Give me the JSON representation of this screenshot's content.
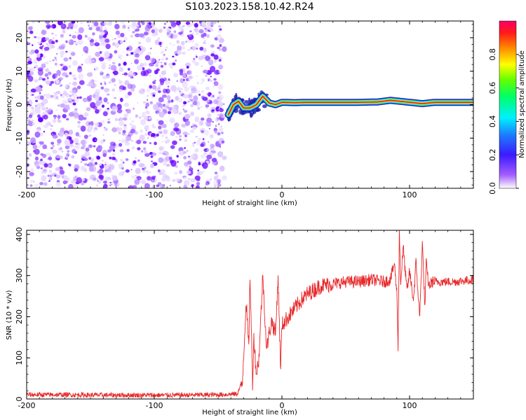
{
  "title": "S103.2023.158.10.42.R24",
  "colors": {
    "snr_line": "#e8282a",
    "speckle": "#7a1fff",
    "band_core": "#ff1a30",
    "band_glow": "#22d8ff",
    "band_outline": "#1f1fb0"
  },
  "chart_data": [
    {
      "type": "heatmap",
      "title": "S103.2023.158.10.42.R24",
      "xlabel": "Height of straight line (km)",
      "ylabel": "Frequency (Hz)",
      "xlim": [
        -200,
        150
      ],
      "ylim": [
        -25,
        25
      ],
      "x_ticks": [
        -200,
        -100,
        0,
        100
      ],
      "y_ticks": [
        -20,
        -10,
        0,
        10,
        20
      ],
      "x_tick_labels": [
        "-200",
        "-100",
        "0",
        "100"
      ],
      "y_tick_labels": [
        "-20",
        "-10",
        "0",
        "10",
        "20"
      ],
      "noise_region_x": [
        -200,
        -45
      ],
      "signal_x_range": [
        -42,
        150
      ],
      "signal_frequency_trace": [
        {
          "x": -42,
          "y": -3
        },
        {
          "x": -38,
          "y": 0
        },
        {
          "x": -34,
          "y": 1
        },
        {
          "x": -30,
          "y": -1
        },
        {
          "x": -25,
          "y": -1
        },
        {
          "x": -20,
          "y": 0
        },
        {
          "x": -15,
          "y": 2.5
        },
        {
          "x": -10,
          "y": 0.5
        },
        {
          "x": -5,
          "y": 0
        },
        {
          "x": 0,
          "y": 0.7
        },
        {
          "x": 10,
          "y": 0.6
        },
        {
          "x": 20,
          "y": 0.7
        },
        {
          "x": 40,
          "y": 0.7
        },
        {
          "x": 60,
          "y": 0.7
        },
        {
          "x": 75,
          "y": 0.8
        },
        {
          "x": 85,
          "y": 1.3
        },
        {
          "x": 95,
          "y": 0.9
        },
        {
          "x": 105,
          "y": 0.5
        },
        {
          "x": 110,
          "y": 0.3
        },
        {
          "x": 120,
          "y": 0.7
        },
        {
          "x": 150,
          "y": 0.7
        }
      ],
      "colorbar": {
        "label": "Normalized spectral amplitude",
        "range": [
          0,
          1
        ],
        "ticks": [
          0.0,
          0.2,
          0.4,
          0.6,
          0.8
        ],
        "tick_labels": [
          "0.0",
          "0.2",
          "0.4",
          "0.6",
          "0.8"
        ]
      }
    },
    {
      "type": "line",
      "xlabel": "Height of straight line (km)",
      "ylabel": "SNR (10 * v/v)",
      "xlim": [
        -200,
        150
      ],
      "ylim": [
        0,
        410
      ],
      "x_ticks": [
        -200,
        -100,
        0,
        100
      ],
      "y_ticks": [
        0,
        100,
        200,
        300,
        400
      ],
      "x_tick_labels": [
        "-200",
        "-100",
        "0",
        "100"
      ],
      "y_tick_labels": [
        "0",
        "100",
        "200",
        "300",
        "400"
      ],
      "series": [
        {
          "color": "#e8282a",
          "x": [
            -200,
            -170,
            -140,
            -110,
            -80,
            -50,
            -35,
            -31,
            -28,
            -26,
            -25,
            -23,
            -22,
            -20,
            -18,
            -15,
            -12,
            -10,
            -8,
            -5,
            -3,
            -1,
            0,
            5,
            10,
            15,
            20,
            25,
            30,
            40,
            50,
            60,
            70,
            80,
            85,
            88,
            90,
            91,
            92,
            93,
            95,
            98,
            100,
            103,
            105,
            108,
            110,
            112,
            113,
            115,
            118,
            125,
            135,
            150
          ],
          "y": [
            8,
            8,
            7,
            7,
            7,
            8,
            10,
            40,
            240,
            120,
            300,
            40,
            150,
            60,
            100,
            300,
            120,
            160,
            190,
            160,
            300,
            70,
            180,
            200,
            220,
            240,
            255,
            265,
            275,
            280,
            285,
            285,
            290,
            285,
            290,
            330,
            260,
            130,
            410,
            280,
            370,
            260,
            310,
            240,
            330,
            200,
            380,
            220,
            330,
            275,
            285,
            285,
            285,
            290
          ]
        }
      ]
    }
  ]
}
